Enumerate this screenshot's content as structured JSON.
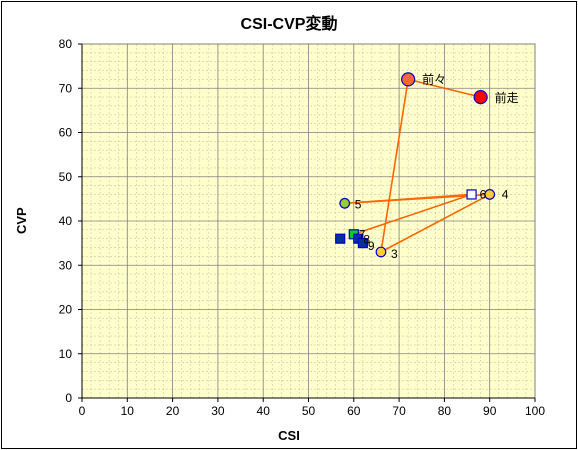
{
  "chart_data": {
    "type": "scatter",
    "title": "CSI-CVP変動",
    "xlabel": "CSI",
    "ylabel": "CVP",
    "xlim": [
      0,
      100
    ],
    "ylim": [
      0,
      80
    ],
    "xticks": [
      "0",
      "10",
      "20",
      "30",
      "40",
      "50",
      "60",
      "70",
      "80",
      "90",
      "100"
    ],
    "yticks": [
      "0",
      "10",
      "20",
      "30",
      "40",
      "50",
      "60",
      "70",
      "80"
    ],
    "grid": true,
    "plot_background": "#FFFFCC",
    "line_color": "#FF6600",
    "path": [
      {
        "label": "前走",
        "x": 88,
        "y": 68
      },
      {
        "label": "前々",
        "x": 72,
        "y": 72
      },
      {
        "label": "3",
        "x": 66,
        "y": 33
      },
      {
        "label": "4",
        "x": 90,
        "y": 46
      },
      {
        "label": "5",
        "x": 58,
        "y": 44
      },
      {
        "label": "6",
        "x": 86,
        "y": 46
      },
      {
        "label": "7",
        "x": 60,
        "y": 37
      }
    ],
    "points": [
      {
        "label": "前走",
        "x": 88,
        "y": 68,
        "shape": "circle",
        "color": "#FF0000",
        "edge": "#0000CC"
      },
      {
        "label": "前々",
        "x": 72,
        "y": 72,
        "shape": "circle",
        "color": "#FF6633",
        "edge": "#0000CC"
      },
      {
        "label": "3",
        "x": 66,
        "y": 33,
        "shape": "circle",
        "color": "#FFCC33",
        "edge": "#0000CC"
      },
      {
        "label": "4",
        "x": 90,
        "y": 46,
        "shape": "circle",
        "color": "#FFCC33",
        "edge": "#0000CC"
      },
      {
        "label": "5",
        "x": 58,
        "y": 44,
        "shape": "circle",
        "color": "#99CC33",
        "edge": "#0000CC"
      },
      {
        "label": "6",
        "x": 86,
        "y": 46,
        "shape": "square",
        "color": "#FFFFFF",
        "edge": "#0000CC"
      },
      {
        "label": "7",
        "x": 60,
        "y": 37,
        "shape": "square",
        "color": "#00CC33",
        "edge": "#0000CC"
      },
      {
        "label": "8",
        "x": 61,
        "y": 36,
        "shape": "square",
        "color": "#003399",
        "edge": "#0000CC"
      },
      {
        "label": "9",
        "x": 62,
        "y": 35,
        "shape": "square",
        "color": "#003399",
        "edge": "#0000CC"
      },
      {
        "label": "",
        "x": 57,
        "y": 36,
        "shape": "square",
        "color": "#003399",
        "edge": "#0000CC"
      }
    ]
  }
}
